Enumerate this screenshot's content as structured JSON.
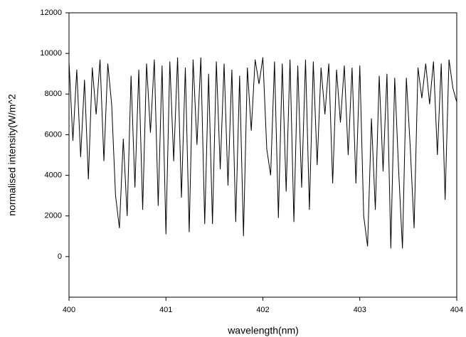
{
  "chart_data": {
    "type": "line",
    "xlabel": "wavelength(nm)",
    "ylabel": "normalised intensity(W/m^2",
    "x": [
      400.0,
      400.04,
      400.08,
      400.12,
      400.16,
      400.2,
      400.24,
      400.28,
      400.32,
      400.36,
      400.4,
      400.44,
      400.48,
      400.52,
      400.56,
      400.6,
      400.64,
      400.68,
      400.72,
      400.76,
      400.8,
      400.84,
      400.88,
      400.92,
      400.96,
      401.0,
      401.04,
      401.08,
      401.12,
      401.16,
      401.2,
      401.24,
      401.28,
      401.32,
      401.36,
      401.4,
      401.44,
      401.48,
      401.52,
      401.56,
      401.6,
      401.64,
      401.68,
      401.72,
      401.76,
      401.8,
      401.84,
      401.88,
      401.92,
      401.96,
      402.0,
      402.04,
      402.08,
      402.12,
      402.16,
      402.2,
      402.24,
      402.28,
      402.32,
      402.36,
      402.4,
      402.44,
      402.48,
      402.52,
      402.56,
      402.6,
      402.64,
      402.68,
      402.72,
      402.76,
      402.8,
      402.84,
      402.88,
      402.92,
      402.96,
      403.0,
      403.04,
      403.08,
      403.12,
      403.16,
      403.2,
      403.24,
      403.28,
      403.32,
      403.36,
      403.4,
      403.44,
      403.48,
      403.52,
      403.56,
      403.6,
      403.64,
      403.68,
      403.72,
      403.76,
      403.8,
      403.84,
      403.88,
      403.92,
      403.96,
      404.0
    ],
    "values": [
      9600,
      5700,
      9200,
      4900,
      8700,
      3800,
      9300,
      7000,
      9700,
      4700,
      9500,
      7500,
      3000,
      1400,
      5800,
      2000,
      8900,
      3400,
      9200,
      2300,
      9500,
      6100,
      9700,
      2500,
      9400,
      1100,
      9600,
      4700,
      9800,
      2900,
      9300,
      1200,
      9700,
      5500,
      9800,
      1600,
      9000,
      1600,
      9600,
      4300,
      9500,
      3500,
      9200,
      1700,
      8900,
      1000,
      9300,
      6200,
      9700,
      8500,
      9800,
      5300,
      4000,
      9600,
      1900,
      9500,
      3200,
      9700,
      1700,
      9400,
      3400,
      9700,
      2300,
      9600,
      4500,
      9300,
      7000,
      9500,
      3600,
      9200,
      6600,
      9400,
      5000,
      9300,
      3600,
      9400,
      2000,
      500,
      6800,
      2300,
      8900,
      4200,
      9000,
      400,
      8800,
      4300,
      400,
      8800,
      5400,
      1400,
      9300,
      7800,
      9500,
      7500,
      9600,
      5000,
      9500,
      2800,
      9700,
      8300,
      7600
    ],
    "color": "#000000",
    "xlim": [
      400,
      404
    ],
    "xticks": [
      400,
      401,
      402,
      403,
      404
    ],
    "ylim": [
      -2000,
      12000
    ],
    "yticks": [
      0,
      2000,
      4000,
      6000,
      8000,
      10000,
      12000
    ]
  }
}
